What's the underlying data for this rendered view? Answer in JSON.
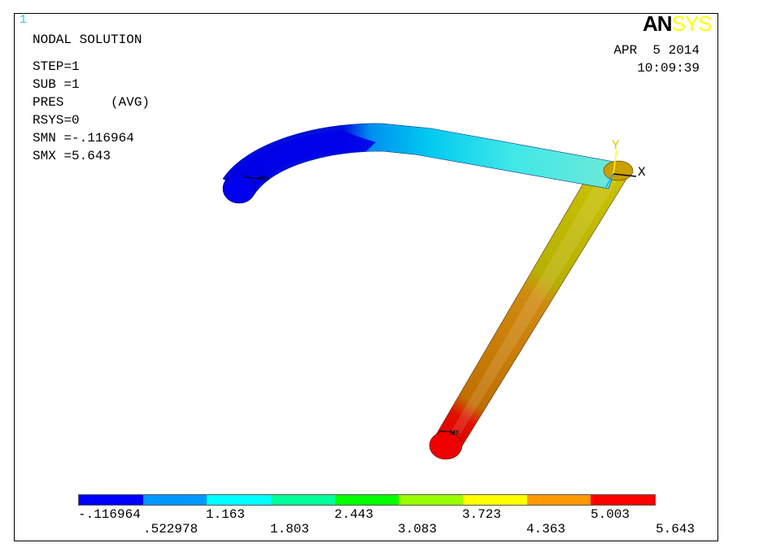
{
  "window_number": "1",
  "logo": {
    "part1": "AN",
    "part2": "SYS"
  },
  "info": {
    "title": "NODAL SOLUTION",
    "step": "STEP=1",
    "sub": "SUB =1",
    "pres": "PRES      (AVG)",
    "rsys": "RSYS=0",
    "smn": "SMN =-.116964",
    "smx": "SMX =5.643"
  },
  "date": "APR  5 2014",
  "time": "10:09:39",
  "triad": {
    "y": "Y",
    "x": "X"
  },
  "markers": {
    "min": "MN",
    "max": "MX"
  },
  "legend": {
    "colors": [
      "#0000ff",
      "#0099ff",
      "#00ffff",
      "#00ff99",
      "#00ff00",
      "#99ff00",
      "#ffff00",
      "#ff9900",
      "#ff0000"
    ],
    "upper_labels": [
      "-.116964",
      "1.163",
      "2.443",
      "3.723",
      "5.003"
    ],
    "lower_labels": [
      ".522978",
      "1.803",
      "3.083",
      "4.363",
      "5.643"
    ]
  }
}
